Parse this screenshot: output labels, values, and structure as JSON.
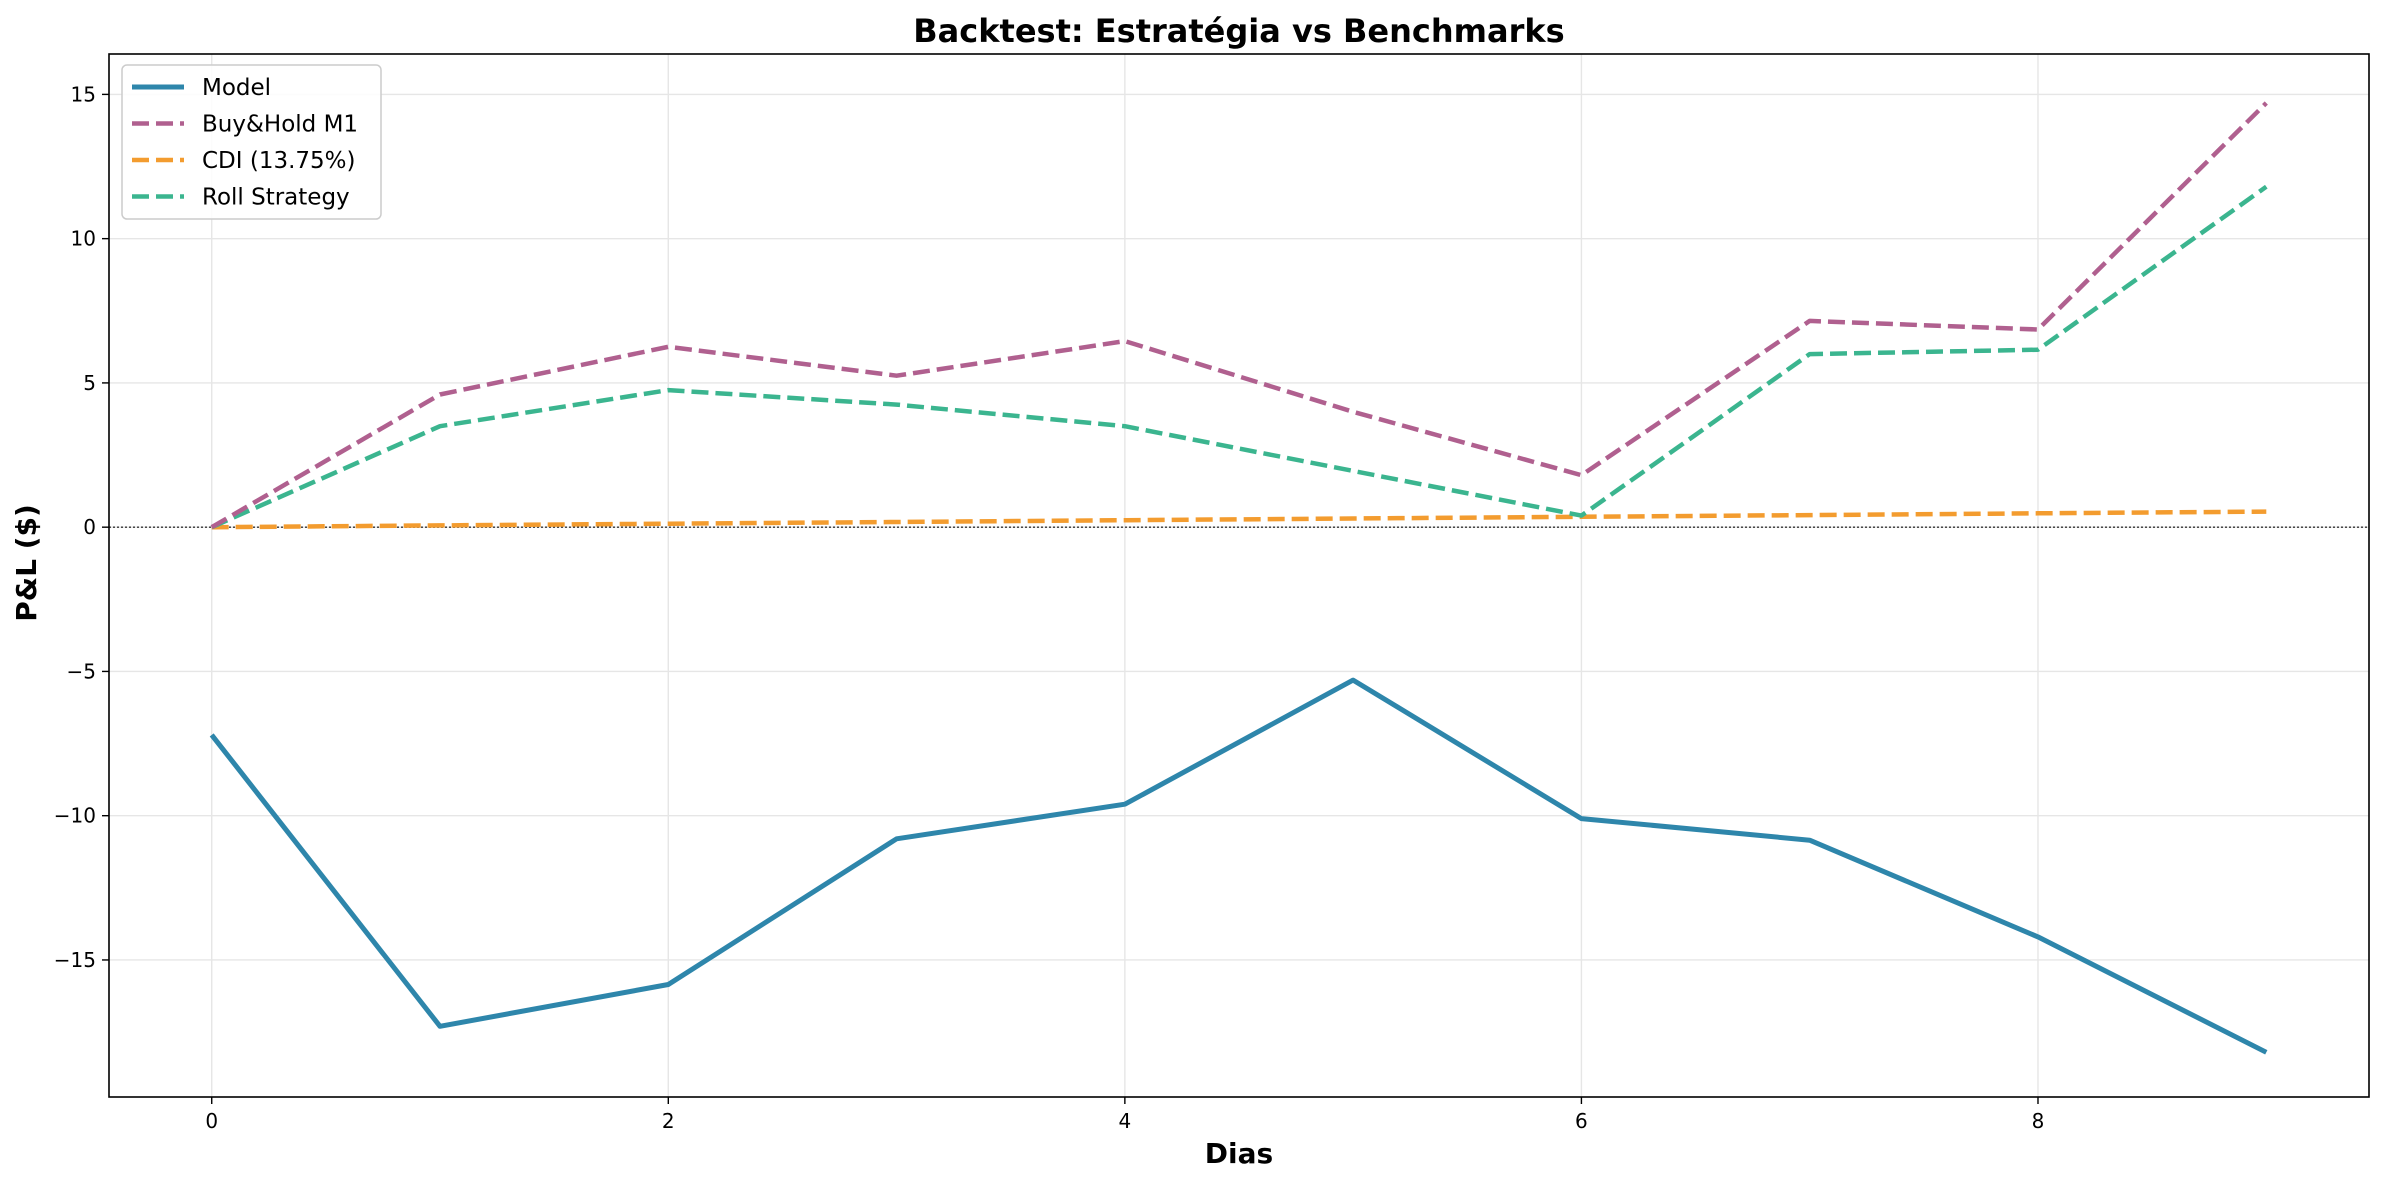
{
  "chart_data": {
    "type": "line",
    "title": "Backtest: Estratégia vs Benchmarks",
    "xlabel": "Dias",
    "ylabel": "P&L ($)",
    "x": [
      0,
      1,
      2,
      3,
      4,
      5,
      6,
      7,
      8,
      9
    ],
    "xlim": [
      -0.45,
      9.45
    ],
    "ylim": [
      -19.75,
      16.4
    ],
    "xticks": [
      0,
      2,
      4,
      6,
      8
    ],
    "yticks": [
      -15,
      -10,
      -5,
      0,
      5,
      10,
      15
    ],
    "xtick_labels": [
      "0",
      "2",
      "4",
      "6",
      "8"
    ],
    "ytick_labels": [
      "−15",
      "−10",
      "−5",
      "0",
      "5",
      "10",
      "15"
    ],
    "grid": true,
    "zero_line": true,
    "legend_position": "upper-left",
    "series": [
      {
        "name": "Model",
        "style": "solid",
        "color": "#2e86ab",
        "values": [
          -7.2,
          -17.3,
          -15.85,
          -10.8,
          -9.6,
          -5.3,
          -10.1,
          -10.85,
          -14.2,
          -18.2
        ]
      },
      {
        "name": "Buy&Hold M1",
        "style": "dashed",
        "color": "#b0608f",
        "values": [
          0,
          4.6,
          6.25,
          5.25,
          6.45,
          4.0,
          1.8,
          7.15,
          6.85,
          14.7
        ]
      },
      {
        "name": "CDI (13.75%)",
        "style": "dashed",
        "color": "#f39c2f",
        "values": [
          0,
          0.06,
          0.12,
          0.18,
          0.24,
          0.3,
          0.36,
          0.42,
          0.48,
          0.54
        ]
      },
      {
        "name": "Roll Strategy",
        "style": "dashed",
        "color": "#3bb58f",
        "values": [
          0,
          3.5,
          4.75,
          4.25,
          3.5,
          1.95,
          0.4,
          6.0,
          6.15,
          11.8
        ]
      }
    ]
  }
}
